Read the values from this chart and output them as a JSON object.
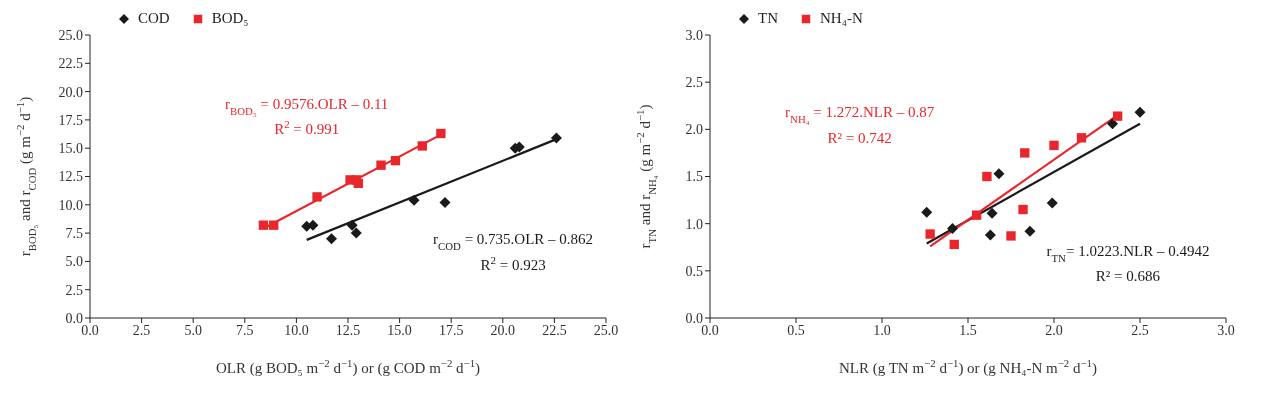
{
  "chart_data": [
    {
      "type": "scatter",
      "xlabel": "OLR (g BOD₅ m$^{−2}$ d$^{−1}$) or (g COD m$^{−2}$ d$^{−1}$)",
      "ylabel": "r$_{BOD₅}$ and r$_{COD}$ (g m$^{−2}$ d$^{−1}$)",
      "xlim": [
        0,
        25
      ],
      "xticks": [
        {
          "value": 0,
          "label": "0.0"
        },
        2.5,
        {
          "value": 5,
          "label": "5.0"
        },
        7.5,
        {
          "value": 10,
          "label": "10.0"
        },
        12.5,
        {
          "value": 15,
          "label": "15.0"
        },
        17.5,
        {
          "value": 20,
          "label": "20.0"
        },
        22.5,
        {
          "value": 25,
          "label": "25.0"
        }
      ],
      "ylim": [
        0,
        25
      ],
      "yticks": [
        {
          "value": 0,
          "label": "0.0"
        },
        2.5,
        {
          "value": 5,
          "label": "5.0"
        },
        7.5,
        {
          "value": 10,
          "label": "10.0"
        },
        12.5,
        {
          "value": 15,
          "label": "15.0"
        },
        17.5,
        {
          "value": 20,
          "label": "20.0"
        },
        22.5,
        {
          "value": 25,
          "label": "25.0"
        }
      ],
      "legend": "top left",
      "series": [
        {
          "name": "COD",
          "marker": "diamond",
          "color": "#1a1a1a",
          "x": [
            10.5,
            10.8,
            11.7,
            12.7,
            12.9,
            15.7,
            17.2,
            20.6,
            20.8,
            22.6
          ],
          "values": [
            8.1,
            8.2,
            7.0,
            8.2,
            7.5,
            10.4,
            10.2,
            15.0,
            15.1,
            15.9
          ]
        },
        {
          "name": "BOD₅",
          "marker": "square",
          "color": "#e8262b",
          "x": [
            8.4,
            8.9,
            11.0,
            12.6,
            12.9,
            13.0,
            14.1,
            14.8,
            16.1,
            17.0
          ],
          "values": [
            8.2,
            8.2,
            10.7,
            12.2,
            12.2,
            11.9,
            13.5,
            13.9,
            15.2,
            16.3
          ]
        },
        {
          "type": "line",
          "color": "#1a1a1a",
          "marker": "none",
          "x": [
            10.5,
            22.6
          ],
          "values": [
            6.9,
            15.8
          ]
        },
        {
          "type": "line",
          "color": "#e8262b",
          "marker": "none",
          "x": [
            8.4,
            17.0
          ],
          "values": [
            7.9,
            16.2
          ]
        }
      ],
      "annotations": [
        "r$_{COD}$ = 0.735.OLR – 0.862",
        "R$^{2}$ = 0.923",
        "r$_{BOD₅}$ = 0.9576.OLR – 0.11",
        "R$^{2}$ = 0.991"
      ]
    },
    {
      "type": "scatter",
      "xlabel": "NLR (g TN m$^{−2}$ d$^{−1}$) or (g NH₄-N m$^{−2}$ d$^{−1}$)",
      "ylabel": "r$_{TN}$ and r$_{NH₄}$ (g m$^{−2}$ d$^{−1}$)",
      "xlim": [
        0,
        3
      ],
      "xticks": [
        {
          "value": 0,
          "label": "0.0"
        },
        0.5,
        {
          "value": 1,
          "label": "1.0"
        },
        1.5,
        {
          "value": 2,
          "label": "2.0"
        },
        2.5,
        {
          "value": 3,
          "label": "3.0"
        }
      ],
      "ylim": [
        0,
        3
      ],
      "yticks": [
        {
          "value": 0,
          "label": "0.0"
        },
        0.5,
        {
          "value": 1,
          "label": "1.0"
        },
        1.5,
        {
          "value": 2,
          "label": "2.0"
        },
        2.5,
        {
          "value": 3,
          "label": "3.0"
        }
      ],
      "legend": "top left",
      "series": [
        {
          "name": "TN",
          "marker": "diamond",
          "color": "#1a1a1a",
          "x": [
            1.26,
            1.41,
            1.63,
            1.64,
            1.68,
            1.86,
            1.99,
            2.34,
            2.5
          ],
          "values": [
            1.12,
            0.95,
            0.88,
            1.11,
            1.53,
            0.92,
            1.22,
            2.06,
            2.18
          ]
        },
        {
          "name": "NH₄-N",
          "marker": "square",
          "color": "#e8262b",
          "x": [
            1.28,
            1.42,
            1.55,
            1.61,
            1.75,
            1.82,
            1.83,
            2.0,
            2.16,
            2.37
          ],
          "values": [
            0.89,
            0.78,
            1.09,
            1.5,
            0.87,
            1.15,
            1.75,
            1.83,
            1.91,
            2.14
          ]
        },
        {
          "type": "line",
          "color": "#1a1a1a",
          "marker": "none",
          "x": [
            1.26,
            2.5
          ],
          "values": [
            0.79,
            2.06
          ]
        },
        {
          "type": "line",
          "color": "#e8262b",
          "marker": "none",
          "x": [
            1.28,
            2.37
          ],
          "values": [
            0.76,
            2.15
          ]
        }
      ],
      "annotations": [
        "r$_{TN}$= 1.0223.NLR – 0.4942",
        "R² = 0.686",
        "r$_{NH₄}$ = 1.272.NLR – 0.87",
        "R² = 0.742"
      ]
    }
  ]
}
